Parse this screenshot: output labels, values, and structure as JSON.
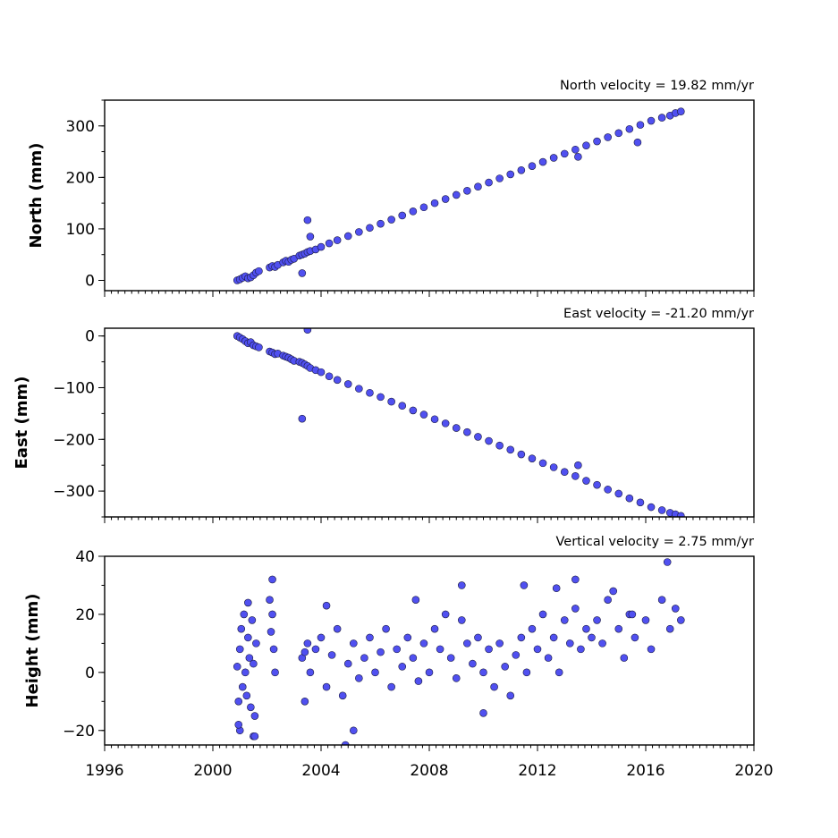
{
  "chart_data": [
    {
      "type": "scatter",
      "title": "North velocity = 19.82 mm/yr",
      "xlabel": "",
      "ylabel": "North (mm)",
      "xlim": [
        1996,
        2020
      ],
      "ylim": [
        -20,
        350
      ],
      "yticks": [
        0,
        100,
        200,
        300
      ],
      "ytick_labels": [
        "0",
        "100",
        "200",
        "300"
      ],
      "xticks": [
        1996,
        2000,
        2004,
        2008,
        2012,
        2016,
        2020
      ],
      "xtick_labels": [],
      "grid": false,
      "marker_color": "#5050f0",
      "marker_edge": "#1a1a40",
      "series": [
        {
          "x": [
            2000.9,
            2001.0,
            2001.1,
            2001.2,
            2001.3,
            2001.4,
            2001.5,
            2001.6,
            2001.7,
            2002.1,
            2002.2,
            2002.3,
            2002.4,
            2002.6,
            2002.7,
            2002.8,
            2002.9,
            2003.0,
            2003.2,
            2003.3,
            2003.4,
            2003.5,
            2003.6,
            2003.8,
            2004.0,
            2004.3,
            2004.6,
            2005.0,
            2005.4,
            2005.8,
            2006.2,
            2006.6,
            2007.0,
            2007.4,
            2007.8,
            2008.2,
            2008.6,
            2009.0,
            2009.4,
            2009.8,
            2010.2,
            2010.6,
            2011.0,
            2011.4,
            2011.8,
            2012.2,
            2012.6,
            2013.0,
            2013.4,
            2013.8,
            2014.2,
            2014.6,
            2015.0,
            2015.4,
            2015.8,
            2016.2,
            2016.6,
            2016.9,
            2017.1,
            2017.3,
            2003.5,
            2003.6,
            2003.3,
            2015.7,
            2013.5
          ],
          "y": [
            0,
            2,
            5,
            8,
            4,
            6,
            10,
            15,
            18,
            25,
            28,
            26,
            30,
            35,
            38,
            36,
            40,
            42,
            48,
            50,
            52,
            55,
            57,
            60,
            65,
            72,
            78,
            86,
            94,
            102,
            110,
            118,
            126,
            134,
            142,
            150,
            158,
            166,
            174,
            182,
            190,
            198,
            206,
            214,
            222,
            230,
            238,
            246,
            254,
            262,
            270,
            278,
            286,
            294,
            302,
            310,
            316,
            320,
            325,
            328,
            117,
            85,
            14,
            268,
            240
          ]
        }
      ]
    },
    {
      "type": "scatter",
      "title": "East velocity = -21.20 mm/yr",
      "xlabel": "",
      "ylabel": "East (mm)",
      "xlim": [
        1996,
        2020
      ],
      "ylim": [
        -350,
        15
      ],
      "yticks": [
        0,
        -100,
        -200,
        -300
      ],
      "ytick_labels": [
        "0",
        "−100",
        "−200",
        "−300"
      ],
      "xticks": [
        1996,
        2000,
        2004,
        2008,
        2012,
        2016,
        2020
      ],
      "xtick_labels": [],
      "grid": false,
      "marker_color": "#5050f0",
      "marker_edge": "#1a1a40",
      "series": [
        {
          "x": [
            2000.9,
            2001.0,
            2001.1,
            2001.2,
            2001.3,
            2001.4,
            2001.5,
            2001.6,
            2001.7,
            2002.1,
            2002.2,
            2002.3,
            2002.4,
            2002.6,
            2002.7,
            2002.8,
            2002.9,
            2003.0,
            2003.2,
            2003.3,
            2003.4,
            2003.5,
            2003.6,
            2003.8,
            2004.0,
            2004.3,
            2004.6,
            2005.0,
            2005.4,
            2005.8,
            2006.2,
            2006.6,
            2007.0,
            2007.4,
            2007.8,
            2008.2,
            2008.6,
            2009.0,
            2009.4,
            2009.8,
            2010.2,
            2010.6,
            2011.0,
            2011.4,
            2011.8,
            2012.2,
            2012.6,
            2013.0,
            2013.4,
            2013.8,
            2014.2,
            2014.6,
            2015.0,
            2015.4,
            2015.8,
            2016.2,
            2016.6,
            2016.9,
            2017.1,
            2017.3,
            2003.3,
            2003.5,
            2013.5
          ],
          "y": [
            0,
            -3,
            -6,
            -10,
            -14,
            -12,
            -18,
            -20,
            -22,
            -30,
            -32,
            -35,
            -34,
            -38,
            -40,
            -42,
            -45,
            -48,
            -50,
            -52,
            -55,
            -58,
            -62,
            -66,
            -70,
            -78,
            -85,
            -93,
            -102,
            -110,
            -118,
            -127,
            -135,
            -144,
            -152,
            -161,
            -169,
            -178,
            -186,
            -195,
            -203,
            -212,
            -220,
            -229,
            -237,
            -246,
            -254,
            -263,
            -271,
            -280,
            -288,
            -297,
            -305,
            -314,
            -322,
            -331,
            -337,
            -342,
            -345,
            -348,
            -160,
            12,
            -250
          ]
        }
      ]
    },
    {
      "type": "scatter",
      "title": "Vertical velocity = 2.75 mm/yr",
      "xlabel": "",
      "ylabel": "Height (mm)",
      "xlim": [
        1996,
        2020
      ],
      "ylim": [
        -25,
        40
      ],
      "yticks": [
        -20,
        0,
        20,
        40
      ],
      "ytick_labels": [
        "−20",
        "0",
        "20",
        "40"
      ],
      "xticks": [
        1996,
        2000,
        2004,
        2008,
        2012,
        2016,
        2020
      ],
      "xtick_labels": [
        "1996",
        "2000",
        "2004",
        "2008",
        "2012",
        "2016",
        "2020"
      ],
      "grid": false,
      "marker_color": "#5050f0",
      "marker_edge": "#1a1a40",
      "series": [
        {
          "x": [
            2000.9,
            2000.95,
            2001.0,
            2001.05,
            2001.1,
            2001.15,
            2001.2,
            2001.25,
            2001.3,
            2001.35,
            2001.4,
            2001.45,
            2001.5,
            2001.55,
            2001.6,
            2002.1,
            2002.15,
            2002.2,
            2002.25,
            2002.3,
            2003.3,
            2003.4,
            2003.5,
            2003.6,
            2003.8,
            2004.0,
            2004.2,
            2004.4,
            2004.6,
            2004.8,
            2005.0,
            2005.2,
            2005.4,
            2005.6,
            2005.8,
            2006.0,
            2006.2,
            2006.4,
            2006.6,
            2006.8,
            2007.0,
            2007.2,
            2007.4,
            2007.6,
            2007.8,
            2008.0,
            2008.2,
            2008.4,
            2008.6,
            2008.8,
            2009.0,
            2009.2,
            2009.4,
            2009.6,
            2009.8,
            2010.0,
            2010.2,
            2010.4,
            2010.6,
            2010.8,
            2011.0,
            2011.2,
            2011.4,
            2011.6,
            2011.8,
            2012.0,
            2012.2,
            2012.4,
            2012.6,
            2012.8,
            2013.0,
            2013.2,
            2013.4,
            2013.6,
            2013.8,
            2014.0,
            2014.2,
            2014.4,
            2014.6,
            2015.0,
            2015.2,
            2015.4,
            2015.6,
            2016.0,
            2016.2,
            2016.6,
            2016.9,
            2017.1,
            2017.3,
            2001.0,
            2001.3,
            2001.5,
            2002.2,
            2003.4,
            2004.9,
            2005.2,
            2009.2,
            2013.4,
            2016.8,
            2011.5,
            2001.55,
            2000.95,
            2004.2,
            2007.5,
            2010.0,
            2012.7,
            2014.8,
            2015.5
          ],
          "y": [
            2,
            -10,
            8,
            15,
            -5,
            20,
            0,
            -8,
            12,
            5,
            -12,
            18,
            3,
            -15,
            10,
            25,
            14,
            20,
            8,
            0,
            5,
            -10,
            10,
            0,
            8,
            12,
            -5,
            6,
            15,
            -8,
            3,
            10,
            -2,
            5,
            12,
            0,
            7,
            15,
            -5,
            8,
            2,
            12,
            5,
            -3,
            10,
            0,
            15,
            8,
            20,
            5,
            -2,
            18,
            10,
            3,
            12,
            0,
            8,
            -5,
            10,
            2,
            -8,
            6,
            12,
            0,
            15,
            8,
            20,
            5,
            12,
            0,
            18,
            10,
            22,
            8,
            15,
            12,
            18,
            10,
            25,
            15,
            5,
            20,
            12,
            18,
            8,
            25,
            15,
            22,
            18,
            -20,
            24,
            -22,
            32,
            7,
            -25,
            -20,
            30,
            32,
            38,
            30,
            -22,
            -18,
            23,
            25,
            -14,
            29,
            28,
            20
          ]
        }
      ]
    }
  ]
}
